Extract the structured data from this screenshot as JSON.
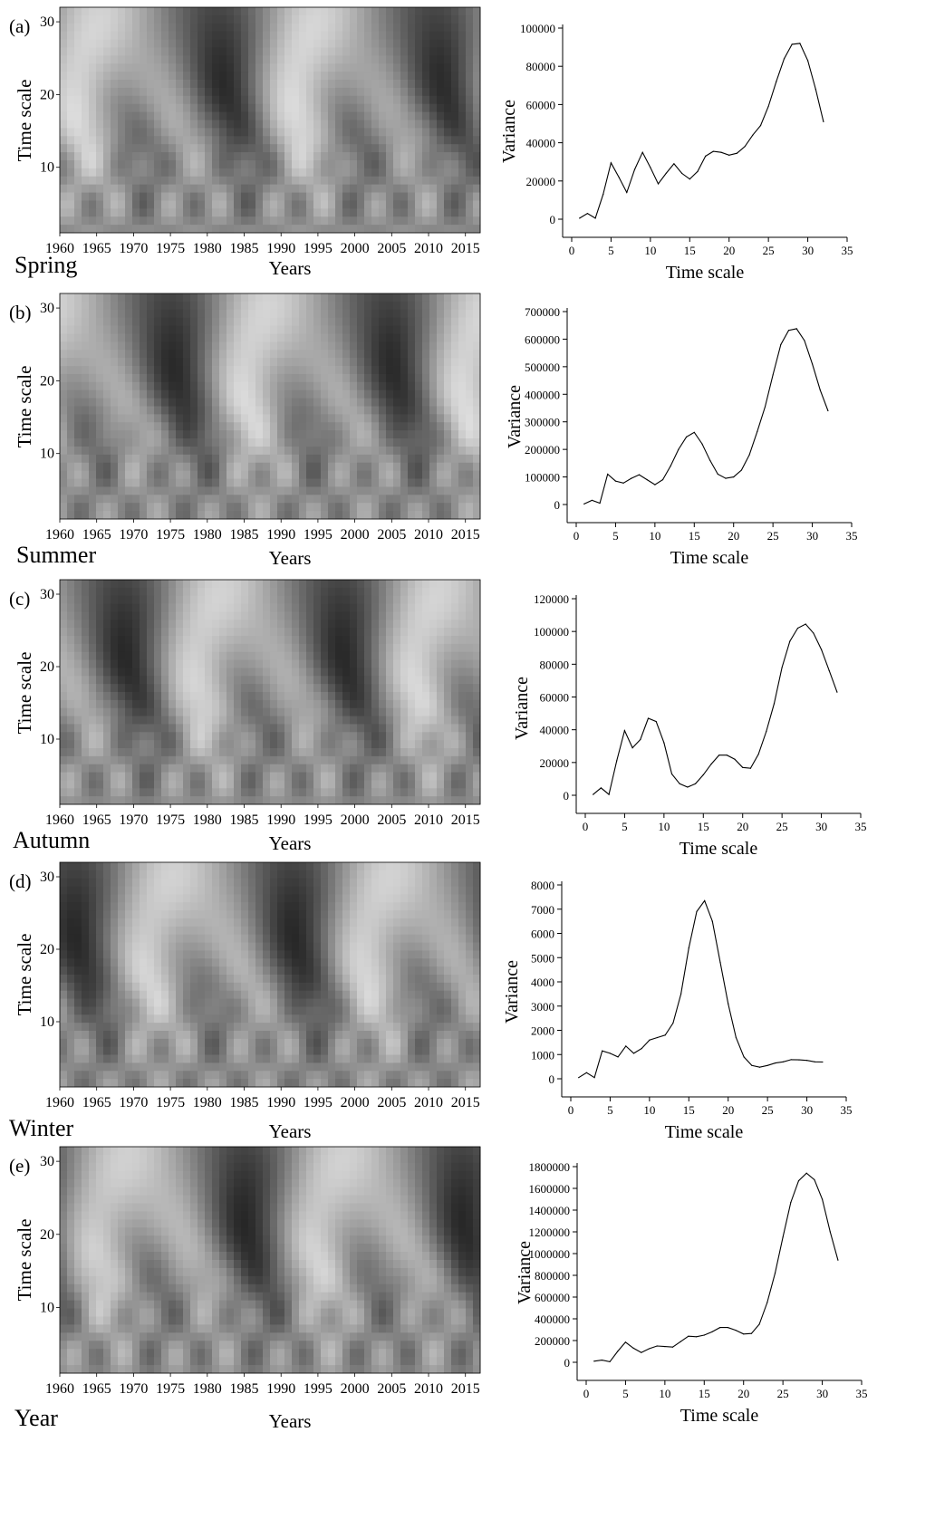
{
  "chart_data": [
    {
      "panel": "(a)",
      "season": "Spring",
      "heatmap": {
        "type": "heatmap",
        "xlabel": "Years",
        "ylabel": "Time scale",
        "xlim": [
          1960,
          2017
        ],
        "ylim": [
          1,
          32
        ],
        "xticks": [
          "1960",
          "1965",
          "1970",
          "1975",
          "1980",
          "1985",
          "1990",
          "1995",
          "2000",
          "2005",
          "2010",
          "2015"
        ],
        "yticks": [
          "10",
          "20",
          "30"
        ]
      },
      "variance": {
        "type": "line",
        "xlabel": "Time scale",
        "ylabel": "Variance",
        "xlim": [
          0,
          35
        ],
        "ylim": [
          0,
          100000
        ],
        "xticks": [
          "0",
          "5",
          "10",
          "15",
          "20",
          "25",
          "30",
          "35"
        ],
        "yticks": [
          "0",
          "20000",
          "40000",
          "60000",
          "80000",
          "100000"
        ],
        "x": [
          1,
          2,
          3,
          4,
          5,
          6,
          7,
          8,
          9,
          10,
          11,
          12,
          13,
          14,
          15,
          16,
          17,
          18,
          19,
          20,
          21,
          22,
          23,
          24,
          25,
          26,
          27,
          28,
          29,
          30,
          31,
          32
        ],
        "values": [
          500,
          3000,
          500,
          13000,
          29500,
          22000,
          14000,
          26000,
          35000,
          27000,
          18500,
          24000,
          29000,
          24000,
          21000,
          25000,
          33000,
          35500,
          35000,
          33500,
          34500,
          38000,
          44000,
          49000,
          59000,
          72000,
          84000,
          91500,
          92000,
          83000,
          68000,
          51000
        ]
      }
    },
    {
      "panel": "(b)",
      "season": "Summer",
      "heatmap": {
        "type": "heatmap",
        "xlabel": "Years",
        "ylabel": "Time scale",
        "xlim": [
          1960,
          2017
        ],
        "ylim": [
          1,
          32
        ],
        "xticks": [
          "1960",
          "1965",
          "1970",
          "1975",
          "1980",
          "1985",
          "1990",
          "1995",
          "2000",
          "2005",
          "2010",
          "2015"
        ],
        "yticks": [
          "10",
          "20",
          "30"
        ]
      },
      "variance": {
        "type": "line",
        "xlabel": "Time scale",
        "ylabel": "Variance",
        "xlim": [
          0,
          35
        ],
        "ylim": [
          0,
          700000
        ],
        "xticks": [
          "0",
          "5",
          "10",
          "15",
          "20",
          "25",
          "30",
          "35"
        ],
        "yticks": [
          "0",
          "100000",
          "200000",
          "300000",
          "400000",
          "500000",
          "600000",
          "700000"
        ],
        "x": [
          1,
          2,
          3,
          4,
          5,
          6,
          7,
          8,
          9,
          10,
          11,
          12,
          13,
          14,
          15,
          16,
          17,
          18,
          19,
          20,
          21,
          22,
          23,
          24,
          25,
          26,
          27,
          28,
          29,
          30,
          31,
          32
        ],
        "values": [
          2000,
          15000,
          5000,
          110000,
          85000,
          78000,
          95000,
          108000,
          90000,
          72000,
          90000,
          140000,
          200000,
          245000,
          262000,
          220000,
          160000,
          110000,
          95000,
          100000,
          125000,
          180000,
          265000,
          355000,
          470000,
          580000,
          632000,
          638000,
          595000,
          510000,
          415000,
          340000
        ]
      }
    },
    {
      "panel": "(c)",
      "season": "Autumn",
      "heatmap": {
        "type": "heatmap",
        "xlabel": "Years",
        "ylabel": "Time scale",
        "xlim": [
          1960,
          2017
        ],
        "ylim": [
          1,
          32
        ],
        "xticks": [
          "1960",
          "1965",
          "1970",
          "1975",
          "1980",
          "1985",
          "1990",
          "1995",
          "2000",
          "2005",
          "2010",
          "2015"
        ],
        "yticks": [
          "10",
          "20",
          "30"
        ]
      },
      "variance": {
        "type": "line",
        "xlabel": "Time scale",
        "ylabel": "Variance",
        "xlim": [
          0,
          35
        ],
        "ylim": [
          0,
          120000
        ],
        "xticks": [
          "0",
          "5",
          "10",
          "15",
          "20",
          "25",
          "30",
          "35"
        ],
        "yticks": [
          "0",
          "20000",
          "40000",
          "60000",
          "80000",
          "100000",
          "120000"
        ],
        "x": [
          1,
          2,
          3,
          4,
          5,
          6,
          7,
          8,
          9,
          10,
          11,
          12,
          13,
          14,
          15,
          16,
          17,
          18,
          19,
          20,
          21,
          22,
          23,
          24,
          25,
          26,
          27,
          28,
          29,
          30,
          31,
          32
        ],
        "values": [
          500,
          4500,
          500,
          21000,
          39500,
          29000,
          34000,
          47000,
          45000,
          32000,
          13000,
          7000,
          5000,
          7000,
          12500,
          19000,
          24500,
          24500,
          22000,
          17000,
          16500,
          25000,
          39000,
          56000,
          78000,
          94000,
          102000,
          104500,
          99000,
          89000,
          76000,
          63000
        ]
      }
    },
    {
      "panel": "(d)",
      "season": "Winter",
      "heatmap": {
        "type": "heatmap",
        "xlabel": "Years",
        "ylabel": "Time scale",
        "xlim": [
          1960,
          2017
        ],
        "ylim": [
          1,
          32
        ],
        "xticks": [
          "1960",
          "1965",
          "1970",
          "1975",
          "1980",
          "1985",
          "1990",
          "1995",
          "2000",
          "2005",
          "2010",
          "2015"
        ],
        "yticks": [
          "10",
          "20",
          "30"
        ]
      },
      "variance": {
        "type": "line",
        "xlabel": "Time scale",
        "ylabel": "Variance",
        "xlim": [
          0,
          35
        ],
        "ylim": [
          0,
          8000
        ],
        "xticks": [
          "0",
          "5",
          "10",
          "15",
          "20",
          "25",
          "30",
          "35"
        ],
        "yticks": [
          "0",
          "1000",
          "2000",
          "3000",
          "4000",
          "5000",
          "6000",
          "7000",
          "8000"
        ],
        "x": [
          1,
          2,
          3,
          4,
          5,
          6,
          7,
          8,
          9,
          10,
          11,
          12,
          13,
          14,
          15,
          16,
          17,
          18,
          19,
          20,
          21,
          22,
          23,
          24,
          25,
          26,
          27,
          28,
          29,
          30,
          31,
          32
        ],
        "values": [
          50,
          250,
          50,
          1150,
          1050,
          900,
          1350,
          1050,
          1250,
          1600,
          1700,
          1800,
          2300,
          3500,
          5400,
          6900,
          7350,
          6500,
          4800,
          3100,
          1700,
          900,
          550,
          480,
          550,
          650,
          700,
          790,
          780,
          760,
          700,
          690
        ]
      }
    },
    {
      "panel": "(e)",
      "season": "Year",
      "heatmap": {
        "type": "heatmap",
        "xlabel": "Years",
        "ylabel": "Time scale",
        "xlim": [
          1960,
          2017
        ],
        "ylim": [
          1,
          32
        ],
        "xticks": [
          "1960",
          "1965",
          "1970",
          "1975",
          "1980",
          "1985",
          "1990",
          "1995",
          "2000",
          "2005",
          "2010",
          "2015"
        ],
        "yticks": [
          "10",
          "20",
          "30"
        ]
      },
      "variance": {
        "type": "line",
        "xlabel": "Time scale",
        "ylabel": "Variance",
        "xlim": [
          0,
          35
        ],
        "ylim": [
          0,
          1800000
        ],
        "xticks": [
          "0",
          "5",
          "10",
          "15",
          "20",
          "25",
          "30",
          "35"
        ],
        "yticks": [
          "0",
          "200000",
          "400000",
          "600000",
          "800000",
          "1000000",
          "1200000",
          "1400000",
          "1600000",
          "1800000"
        ],
        "x": [
          1,
          2,
          3,
          4,
          5,
          6,
          7,
          8,
          9,
          10,
          11,
          12,
          13,
          14,
          15,
          16,
          17,
          18,
          19,
          20,
          21,
          22,
          23,
          24,
          25,
          26,
          27,
          28,
          29,
          30,
          31,
          32
        ],
        "values": [
          10000,
          20000,
          5000,
          100000,
          185000,
          130000,
          90000,
          125000,
          150000,
          145000,
          140000,
          190000,
          240000,
          235000,
          250000,
          280000,
          320000,
          320000,
          295000,
          260000,
          265000,
          350000,
          550000,
          820000,
          1150000,
          1470000,
          1670000,
          1740000,
          1680000,
          1500000,
          1200000,
          940000
        ]
      }
    }
  ],
  "colors": {
    "line": "#000000",
    "axis": "#000000",
    "background": "#ffffff"
  }
}
